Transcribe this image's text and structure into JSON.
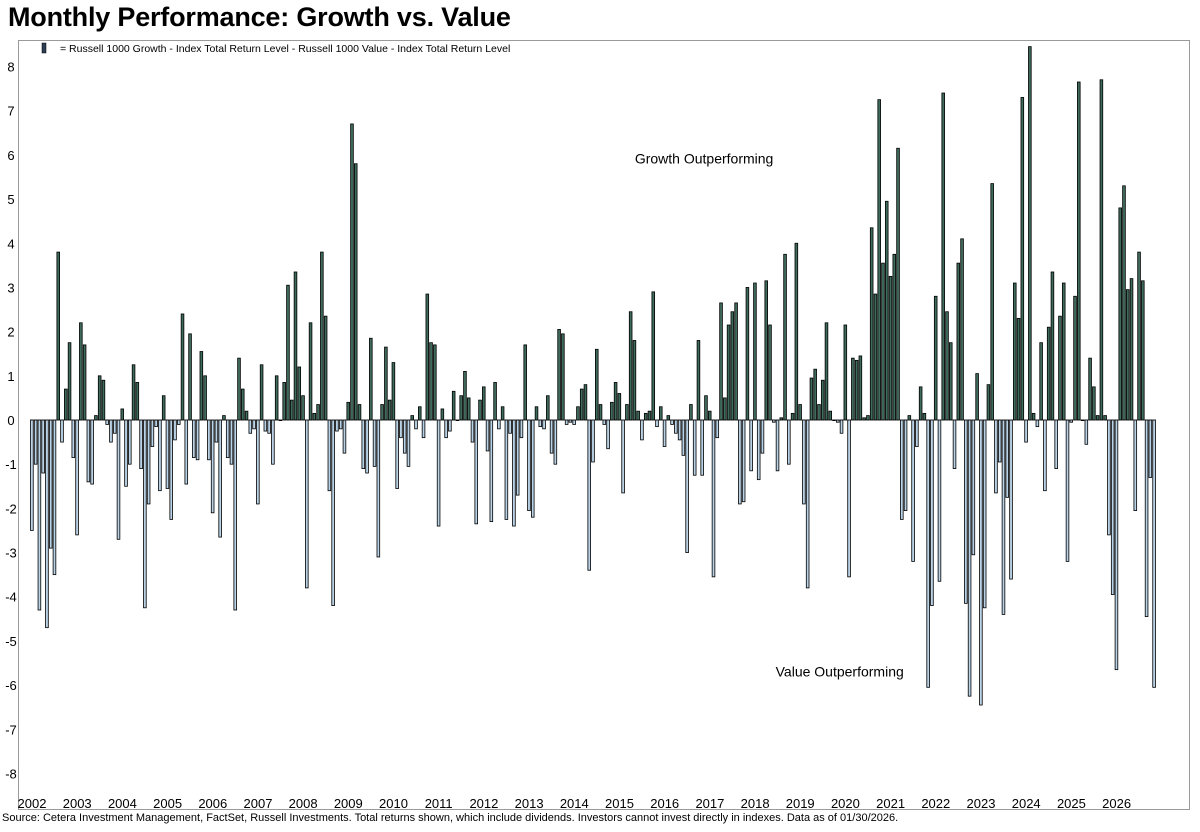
{
  "title": "Monthly Performance: Growth vs. Value",
  "source": "Source: Cetera Investment Management, FactSet, Russell Investments. Total returns shown, which include dividends. Investors cannot invest directly in indexes. Data as of 01/30/2026.",
  "colors": {
    "positive": "#3f6b5c",
    "negative": "#b9d2e6",
    "bar_outline": "#000000",
    "frame": "#9a9a9a"
  },
  "chart_data": {
    "type": "bar",
    "legend": {
      "label": "= Russell 1000 Growth - Index Total Return Level - Russell 1000 Value - Index Total Return Level",
      "placement": "top-left"
    },
    "ylim": [
      -8.6,
      8.6
    ],
    "y_ticks": [
      8,
      7,
      6,
      5,
      4,
      3,
      2,
      1,
      0,
      -1,
      -2,
      -3,
      -4,
      -5,
      -6,
      -7,
      -8
    ],
    "x_start": "2002-01",
    "x_tick_labels": [
      "2002",
      "2003",
      "2004",
      "2005",
      "2006",
      "2007",
      "2008",
      "2009",
      "2010",
      "2011",
      "2012",
      "2013",
      "2014",
      "2015",
      "2016",
      "2017",
      "2018",
      "2019",
      "2020",
      "2021",
      "2022",
      "2023",
      "2024",
      "2025",
      "2026"
    ],
    "annotations": [
      {
        "text": "Growth Outperforming",
        "x": "2016-12",
        "y": 5.8
      },
      {
        "text": "Value Outperforming",
        "x": "2019-12",
        "y": -5.8
      }
    ],
    "grid": false,
    "units": "percentage points",
    "values": [
      -2.5,
      -1.0,
      -4.3,
      -1.2,
      -4.7,
      -2.9,
      -3.5,
      3.8,
      -0.5,
      0.7,
      1.75,
      -0.85,
      -2.6,
      2.2,
      1.7,
      -1.4,
      -1.45,
      0.1,
      1.0,
      0.9,
      -0.1,
      -0.5,
      -0.3,
      -2.7,
      0.25,
      -1.5,
      -1.0,
      1.25,
      0.85,
      -1.1,
      -4.25,
      -1.9,
      -0.6,
      -0.15,
      -1.6,
      0.55,
      -1.55,
      -2.25,
      -0.45,
      -0.1,
      2.4,
      -1.45,
      1.95,
      -0.85,
      -0.9,
      1.55,
      1.0,
      -0.9,
      -2.1,
      -0.5,
      -2.65,
      0.1,
      -0.85,
      -1.0,
      -4.3,
      1.4,
      0.7,
      0.2,
      -0.3,
      -0.2,
      -1.9,
      1.25,
      -0.25,
      -0.3,
      -1.0,
      1.0,
      0.0,
      0.85,
      3.05,
      0.45,
      3.35,
      1.2,
      0.55,
      -3.8,
      2.2,
      0.15,
      0.35,
      3.8,
      2.35,
      -1.6,
      -4.2,
      -0.25,
      -0.2,
      -0.75,
      0.4,
      6.7,
      5.8,
      0.35,
      -1.1,
      -1.2,
      1.85,
      -1.05,
      -3.1,
      0.35,
      1.65,
      0.45,
      1.3,
      -1.55,
      -0.4,
      -0.75,
      -1.05,
      0.1,
      -0.2,
      0.3,
      -0.4,
      2.85,
      1.75,
      1.7,
      -2.4,
      0.25,
      -0.4,
      -0.25,
      0.65,
      0.0,
      0.55,
      1.1,
      0.5,
      -0.5,
      -2.35,
      0.45,
      0.75,
      -0.7,
      -2.3,
      0.85,
      -0.2,
      0.3,
      -2.25,
      -0.3,
      -2.4,
      -1.7,
      -0.4,
      1.7,
      -2.05,
      -2.2,
      0.3,
      -0.15,
      -0.2,
      0.55,
      -0.75,
      -1.0,
      2.05,
      1.95,
      -0.1,
      -0.05,
      -0.1,
      0.3,
      0.7,
      0.8,
      -3.4,
      -0.95,
      1.6,
      0.35,
      -0.1,
      -0.65,
      0.4,
      0.85,
      0.6,
      -1.65,
      0.35,
      2.45,
      1.8,
      0.2,
      -0.45,
      0.15,
      0.2,
      2.9,
      -0.15,
      0.3,
      -0.6,
      0.1,
      -0.1,
      -0.3,
      -0.45,
      -0.8,
      -3.0,
      0.35,
      -1.25,
      1.8,
      -1.25,
      0.55,
      0.2,
      -3.55,
      -0.4,
      2.65,
      0.5,
      2.15,
      2.45,
      2.65,
      -1.9,
      -1.85,
      3.0,
      -1.15,
      3.1,
      -1.35,
      -0.75,
      3.15,
      2.15,
      -0.05,
      -1.15,
      0.05,
      3.75,
      -1.0,
      0.15,
      4.0,
      0.35,
      -1.9,
      -3.8,
      0.95,
      1.15,
      0.35,
      0.9,
      2.2,
      0.2,
      0.0,
      -0.05,
      -0.3,
      2.15,
      -3.55,
      1.4,
      1.35,
      1.45,
      0.05,
      0.1,
      4.35,
      2.85,
      7.25,
      3.55,
      4.95,
      3.25,
      3.75,
      6.15,
      -2.25,
      -2.05,
      0.1,
      -3.2,
      -0.6,
      0.75,
      0.15,
      -6.05,
      -4.2,
      2.8,
      -3.65,
      7.4,
      2.45,
      1.75,
      -1.1,
      3.55,
      4.1,
      -4.15,
      -6.25,
      -3.05,
      1.05,
      -6.45,
      -4.25,
      0.8,
      5.35,
      -1.65,
      -0.95,
      -4.4,
      -1.75,
      -3.6,
      3.1,
      2.3,
      7.3,
      -0.5,
      8.45,
      0.15,
      -0.15,
      1.75,
      -1.6,
      2.1,
      3.35,
      -1.1,
      2.35,
      3.1,
      -3.2,
      -0.05,
      2.8,
      7.65,
      0.0,
      -0.55,
      1.4,
      0.75,
      0.1,
      7.7,
      0.1,
      -2.6,
      -3.95,
      -5.65,
      4.8,
      5.3,
      2.95,
      3.2,
      -2.05,
      3.8,
      3.15,
      -4.45,
      -1.3,
      -6.05
    ]
  }
}
